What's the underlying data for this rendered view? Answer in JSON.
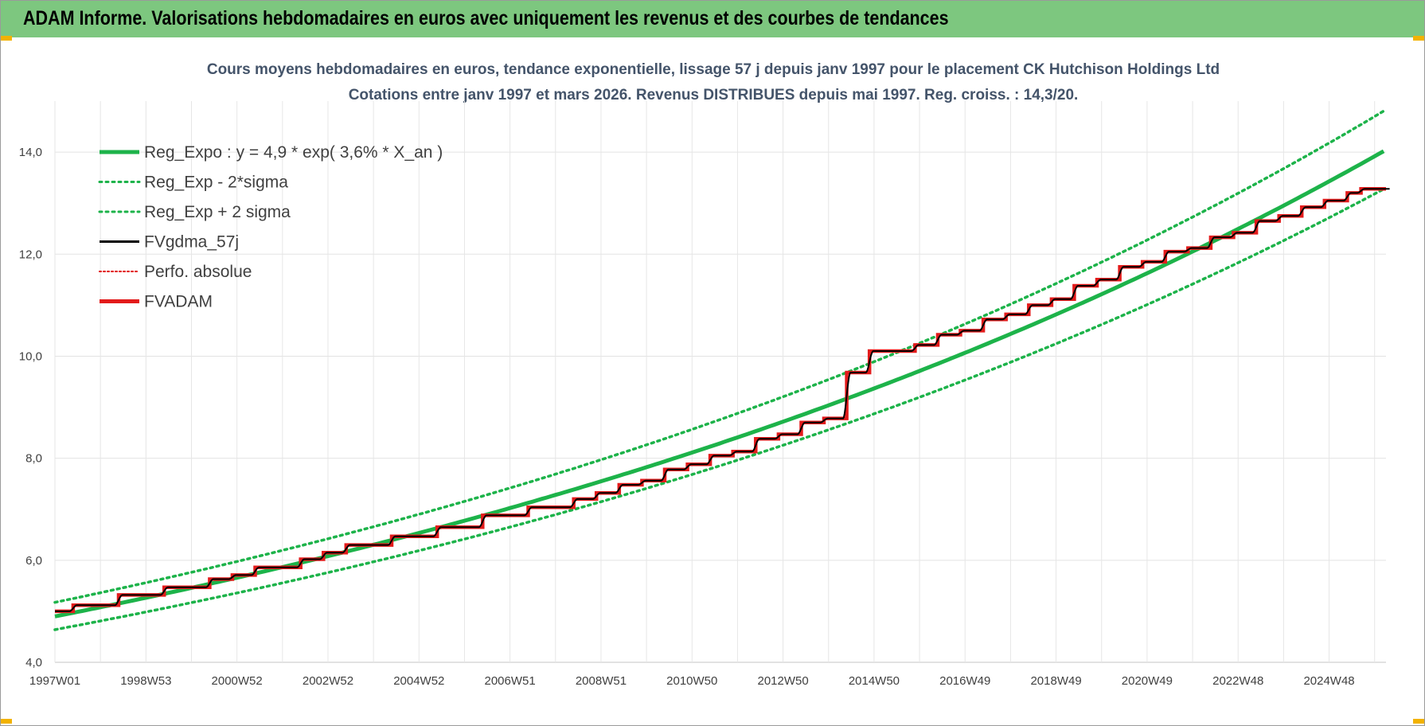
{
  "banner": {
    "title": "ADAM Informe. Valorisations hebdomadaires en euros avec uniquement les revenus et des courbes de tendances"
  },
  "colors": {
    "banner": "#7dc77f",
    "reg": "#1db34a",
    "fvgdma": "#000000",
    "perfo": "#e00000",
    "fvadam": "#e31b1b"
  },
  "chart_data": {
    "type": "line",
    "title": "Cours moyens hebdomadaires en euros, tendance exponentielle, lissage 57 j depuis janv 1997  pour le placement CK Hutchison Holdings Ltd",
    "subtitle": "Cotations entre janv 1997 et mars 2026. Revenus DISTRIBUES depuis mai 1997. Reg. croiss. : 14,3/20.",
    "x_ticks": [
      "1997W01",
      "1998W53",
      "2000W52",
      "2002W52",
      "2004W52",
      "2006W51",
      "2008W51",
      "2010W50",
      "2012W50",
      "2014W50",
      "2016W49",
      "2018W49",
      "2020W49",
      "2022W48",
      "2024W48"
    ],
    "y_ticks": [
      "4,0",
      "6,0",
      "8,0",
      "10,0",
      "12,0",
      "14,0"
    ],
    "ylim": [
      4,
      15
    ],
    "xlim_years": [
      1997.0,
      2026.25
    ],
    "grid": true,
    "legend_position": "top-left",
    "series": [
      {
        "name": "Reg_Expo : y = 4,9 * exp( 3,6% *  X_an )",
        "style": "solid-thick",
        "color": "#1db34a",
        "a": 4.9,
        "rate": 0.036,
        "start": 1997.0,
        "end": 2026.25
      },
      {
        "name": "Reg_Exp - 2*sigma",
        "style": "dotted",
        "color": "#1db34a",
        "factor": 0.947
      },
      {
        "name": "Reg_Exp + 2 sigma",
        "style": "dotted",
        "color": "#1db34a",
        "factor": 1.056
      },
      {
        "name": "FVgdma_57j",
        "style": "solid",
        "color": "#000000"
      },
      {
        "name": "Perfo. absolue",
        "style": "dotted-thin",
        "color": "#e00000"
      },
      {
        "name": "FVADAM",
        "style": "solid-thick",
        "color": "#e31b1b",
        "steps": [
          [
            1997.0,
            5.0
          ],
          [
            1997.4,
            5.12
          ],
          [
            1998.4,
            5.32
          ],
          [
            1999.4,
            5.47
          ],
          [
            2000.4,
            5.63
          ],
          [
            2000.9,
            5.71
          ],
          [
            2001.4,
            5.86
          ],
          [
            2002.4,
            6.02
          ],
          [
            2002.9,
            6.15
          ],
          [
            2003.4,
            6.3
          ],
          [
            2004.4,
            6.47
          ],
          [
            2005.4,
            6.65
          ],
          [
            2006.4,
            6.88
          ],
          [
            2007.4,
            7.04
          ],
          [
            2008.4,
            7.2
          ],
          [
            2008.9,
            7.32
          ],
          [
            2009.4,
            7.48
          ],
          [
            2009.9,
            7.56
          ],
          [
            2010.4,
            7.78
          ],
          [
            2010.9,
            7.88
          ],
          [
            2011.4,
            8.05
          ],
          [
            2011.9,
            8.13
          ],
          [
            2012.4,
            8.38
          ],
          [
            2012.9,
            8.47
          ],
          [
            2013.4,
            8.7
          ],
          [
            2013.9,
            8.78
          ],
          [
            2014.4,
            9.68
          ],
          [
            2014.9,
            10.1
          ],
          [
            2015.9,
            10.22
          ],
          [
            2016.4,
            10.42
          ],
          [
            2016.9,
            10.5
          ],
          [
            2017.4,
            10.72
          ],
          [
            2017.9,
            10.82
          ],
          [
            2018.4,
            11.0
          ],
          [
            2018.9,
            11.12
          ],
          [
            2019.4,
            11.38
          ],
          [
            2019.9,
            11.5
          ],
          [
            2020.4,
            11.75
          ],
          [
            2020.9,
            11.85
          ],
          [
            2021.4,
            12.05
          ],
          [
            2021.9,
            12.12
          ],
          [
            2022.4,
            12.33
          ],
          [
            2022.9,
            12.42
          ],
          [
            2023.4,
            12.65
          ],
          [
            2023.9,
            12.75
          ],
          [
            2024.4,
            12.92
          ],
          [
            2024.9,
            13.05
          ],
          [
            2025.4,
            13.2
          ],
          [
            2025.7,
            13.28
          ],
          [
            2026.25,
            13.28
          ]
        ]
      }
    ]
  }
}
